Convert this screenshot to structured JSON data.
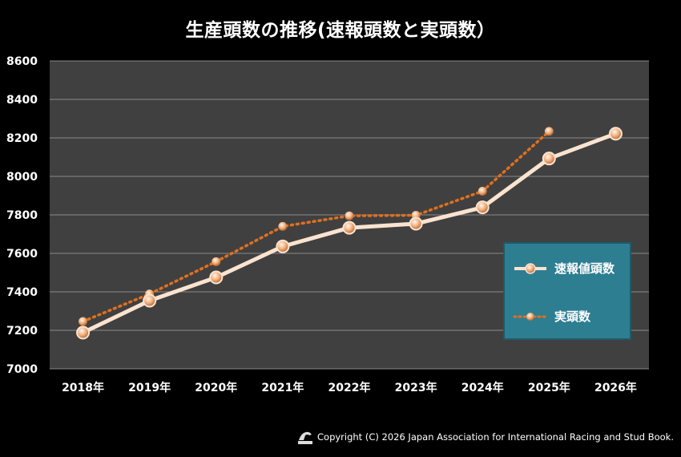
{
  "title": "生産頭数の推移(速報頭数と実頭数）",
  "copyright": "Copyright (C) 2026 Japan Association for International Racing and Stud Book.",
  "colors": {
    "background": "#000000",
    "plot_area": "#404040",
    "gridline": "#8a8a8a",
    "series1_line": "#fbe3cf",
    "series2_line": "#e0701f",
    "marker": "#e8a070",
    "legend_bg": "#2e7e92"
  },
  "chart_data": {
    "type": "line",
    "title": "生産頭数の推移(速報頭数と実頭数）",
    "categories": [
      "2018年",
      "2019年",
      "2020年",
      "2021年",
      "2022年",
      "2023年",
      "2024年",
      "2025年",
      "2026年"
    ],
    "ylim": [
      7000,
      8600
    ],
    "yticks": [
      7000,
      7200,
      7400,
      7600,
      7800,
      8000,
      8200,
      8400,
      8600
    ],
    "grid": true,
    "legend_position": "bottom-right",
    "series": [
      {
        "name": "速報値頭数",
        "style": "solid",
        "values": [
          7188,
          7354,
          7475,
          7636,
          7733,
          7754,
          7839,
          8093,
          8222
        ]
      },
      {
        "name": "実頭数",
        "style": "dotted",
        "values": [
          7246,
          7389,
          7557,
          7740,
          7795,
          7798,
          7923,
          8234,
          null
        ]
      }
    ]
  }
}
